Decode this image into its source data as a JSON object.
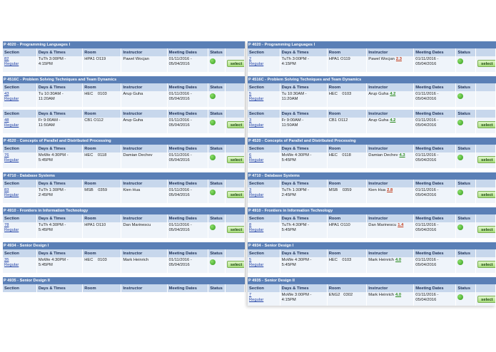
{
  "columns": [
    "Section",
    "Days & Times",
    "Room",
    "Instructor",
    "Meeting Dates",
    "Status"
  ],
  "select_label": "select",
  "left": {
    "courses": [
      {
        "title": "P 4020 - Programming Languages I",
        "sec_prefix": "82",
        "section": "0001-LEC",
        "type": "Regular",
        "days": "TuTh 3:00PM -",
        "days2": "4:15PM",
        "room": "HPA1 O119",
        "instructor": "Pawel Wocjan",
        "dates": "01/11/2016 -",
        "dates2": "05/04/2016"
      },
      {
        "title": "P 4516C - Problem Solving Techniques and Team Dynamics",
        "sec_prefix": "43",
        "section": "0001-LEC",
        "type": "Regular",
        "days": "Tu 10:30AM -",
        "days2": "11:20AM",
        "room": "HEC    0103",
        "instructor": "Arup Guha",
        "dates": "01/11/2016 -",
        "dates2": "05/04/2016",
        "second": {
          "sec_prefix": "48",
          "section": "0012-LAB",
          "type": "Regular",
          "days": "Fr 9:00AM -",
          "days2": "11:50AM",
          "room": "CB1 O112",
          "instructor": "Arup Guha",
          "dates": "01/11/2016 -",
          "dates2": "05/04/2016"
        }
      },
      {
        "title": "P 4520 - Concepts of Parallel and Distributed Processing",
        "sec_prefix": "76",
        "section": "0001-LEC",
        "type": "Regular",
        "days": "MoWe 4:30PM -",
        "days2": "5:45PM",
        "room": "HEC    0118",
        "instructor": "Damian Dechev",
        "dates": "01/11/2016 -",
        "dates2": "05/04/2016"
      },
      {
        "title": "P 4710 - Database Systems",
        "sec_prefix": "83",
        "section": "0001-LEC",
        "type": "Regular",
        "days": "TuTh 1:30PM -",
        "days2": "2:45PM",
        "room": "MSB    0359",
        "instructor": "Kien Hua",
        "dates": "01/11/2016 -",
        "dates2": "05/04/2016"
      },
      {
        "title": "P 4910 - Frontiers in Information Technology",
        "sec_prefix": "78",
        "section": "0003-LEC",
        "type": "Regular",
        "days": "TuTh 4:30PM -",
        "days2": "5:45PM",
        "room": "HPA1 O110",
        "instructor": "Dan Marinescu",
        "dates": "01/11/2016 -",
        "dates2": "05/04/2016"
      },
      {
        "title": "P 4934 - Senior Design I",
        "sec_prefix": "35",
        "section": "0001-LEC",
        "type": "Regular",
        "days": "MoWe 4:30PM -",
        "days2": "5:45PM",
        "room": "HEC    0103",
        "instructor": "Mark Heinrich",
        "dates": "01/11/2016 -",
        "dates2": "05/04/2016"
      },
      {
        "title": "P 4935 - Senior Design II",
        "sec_prefix": "97",
        "section": "0001-LEC",
        "type": "Regular",
        "days": "MoWe 3:00PM -",
        "days2": "4:15PM",
        "room": "ENG2   0302",
        "instructor": "Mark Heinrich",
        "dates": "01/11/2016 -",
        "dates2": "05/04/2016"
      }
    ]
  },
  "right": {
    "courses": [
      {
        "title": "P 4020 - Programming Languages I",
        "sec_prefix": "2",
        "section": "0001-LEC",
        "type": "Regular",
        "days": "TuTh 3:00PM -",
        "days2": "4:15PM",
        "room": "HPA1 O119",
        "instructor": "Pawel Wocjan",
        "rating": "2.3",
        "dates": "01/11/2016 -",
        "dates2": "05/04/2016"
      },
      {
        "title": "P 4516C - Problem Solving Techniques and Team Dynamics",
        "sec_prefix": "5",
        "section": "0001-LEC",
        "type": "Regular",
        "days": "Tu 10:30AM -",
        "days2": "11:20AM",
        "room": "HEC    0103",
        "instructor": "Arup Guha",
        "rating": "4.2",
        "dates": "01/11/2016 -",
        "dates2": "05/04/2016",
        "second": {
          "sec_prefix": "3",
          "section": "0012-LAB",
          "type": "Regular",
          "days": "Fr 9:00AM -",
          "days2": "11:50AM",
          "room": "CB1 O112",
          "instructor": "Arup Guha",
          "rating": "4.2",
          "dates": "01/11/2016 -",
          "dates2": "05/04/2016"
        }
      },
      {
        "title": "P 4520 - Concepts of Parallel and Distributed Processing",
        "sec_prefix": "6",
        "section": "0001-LEC",
        "type": "Regular",
        "days": "MoWe 4:30PM -",
        "days2": "5:45PM",
        "room": "HEC    0118",
        "instructor": "Damian Dechev",
        "rating": "4.3",
        "dates": "01/11/2016 -",
        "dates2": "05/04/2016"
      },
      {
        "title": "P 4710 - Database Systems",
        "sec_prefix": "3",
        "section": "0001-LEC",
        "type": "Regular",
        "days": "TuTh 1:30PM -",
        "days2": "2:45PM",
        "room": "MSB    0359",
        "instructor": "Kien Hua",
        "rating": "2.8",
        "dates": "01/11/2016 -",
        "dates2": "05/04/2016"
      },
      {
        "title": "P 4910 - Frontiers in Information Technology",
        "sec_prefix": "8",
        "section": "0003-LEC",
        "type": "Regular",
        "days": "TuTh 4:30PM -",
        "days2": "5:45PM",
        "room": "HPA1 O110",
        "instructor": "Dan Marinescu",
        "rating": "1.4",
        "dates": "01/11/2016 -",
        "dates2": "05/04/2016"
      },
      {
        "title": "P 4934 - Senior Design I",
        "sec_prefix": "5",
        "section": "0001-LEC",
        "type": "Regular",
        "days": "MoWe 4:30PM -",
        "days2": "5:45PM",
        "room": "HEC    0103",
        "instructor": "Mark Heinrich",
        "rating": "4.0",
        "dates": "01/11/2016 -",
        "dates2": "05/04/2016"
      },
      {
        "title": "P 4935 - Senior Design II",
        "sec_prefix": "7",
        "section": "0001-LEC",
        "type": "Regular",
        "days": "MoWe 3:00PM -",
        "days2": "4:15PM",
        "room": "ENG2   0302",
        "instructor": "Mark Heinrich",
        "rating": "4.0",
        "dates": "01/11/2016 -",
        "dates2": "05/04/2016"
      }
    ]
  }
}
